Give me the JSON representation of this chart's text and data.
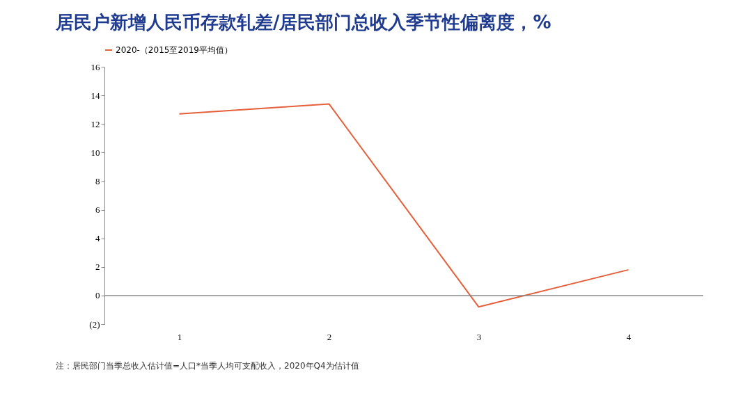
{
  "chart_data": {
    "type": "line",
    "title": "居民户新增人民币存款轧差/居民部门总收入季节性偏离度，%",
    "categories": [
      "1",
      "2",
      "3",
      "4"
    ],
    "series": [
      {
        "name": "2020-（2015至2019平均值）",
        "color": "#e5603a",
        "values": [
          12.7,
          13.4,
          -0.8,
          1.8
        ]
      }
    ],
    "ylim": [
      -2,
      16
    ],
    "yticks": [
      {
        "value": -2,
        "label": "(2)"
      },
      0,
      2,
      4,
      6,
      8,
      10,
      12,
      14,
      16
    ],
    "ref_lines": [
      {
        "axis": "y",
        "value": 0,
        "color": "#888888"
      }
    ],
    "grid": false,
    "legend": "top",
    "marker": "none",
    "line_style": "solid",
    "annotations": [
      "注：居民部门当季总收入估计值=人口*当季人均可支配收入，2020年Q4为估计值"
    ]
  }
}
